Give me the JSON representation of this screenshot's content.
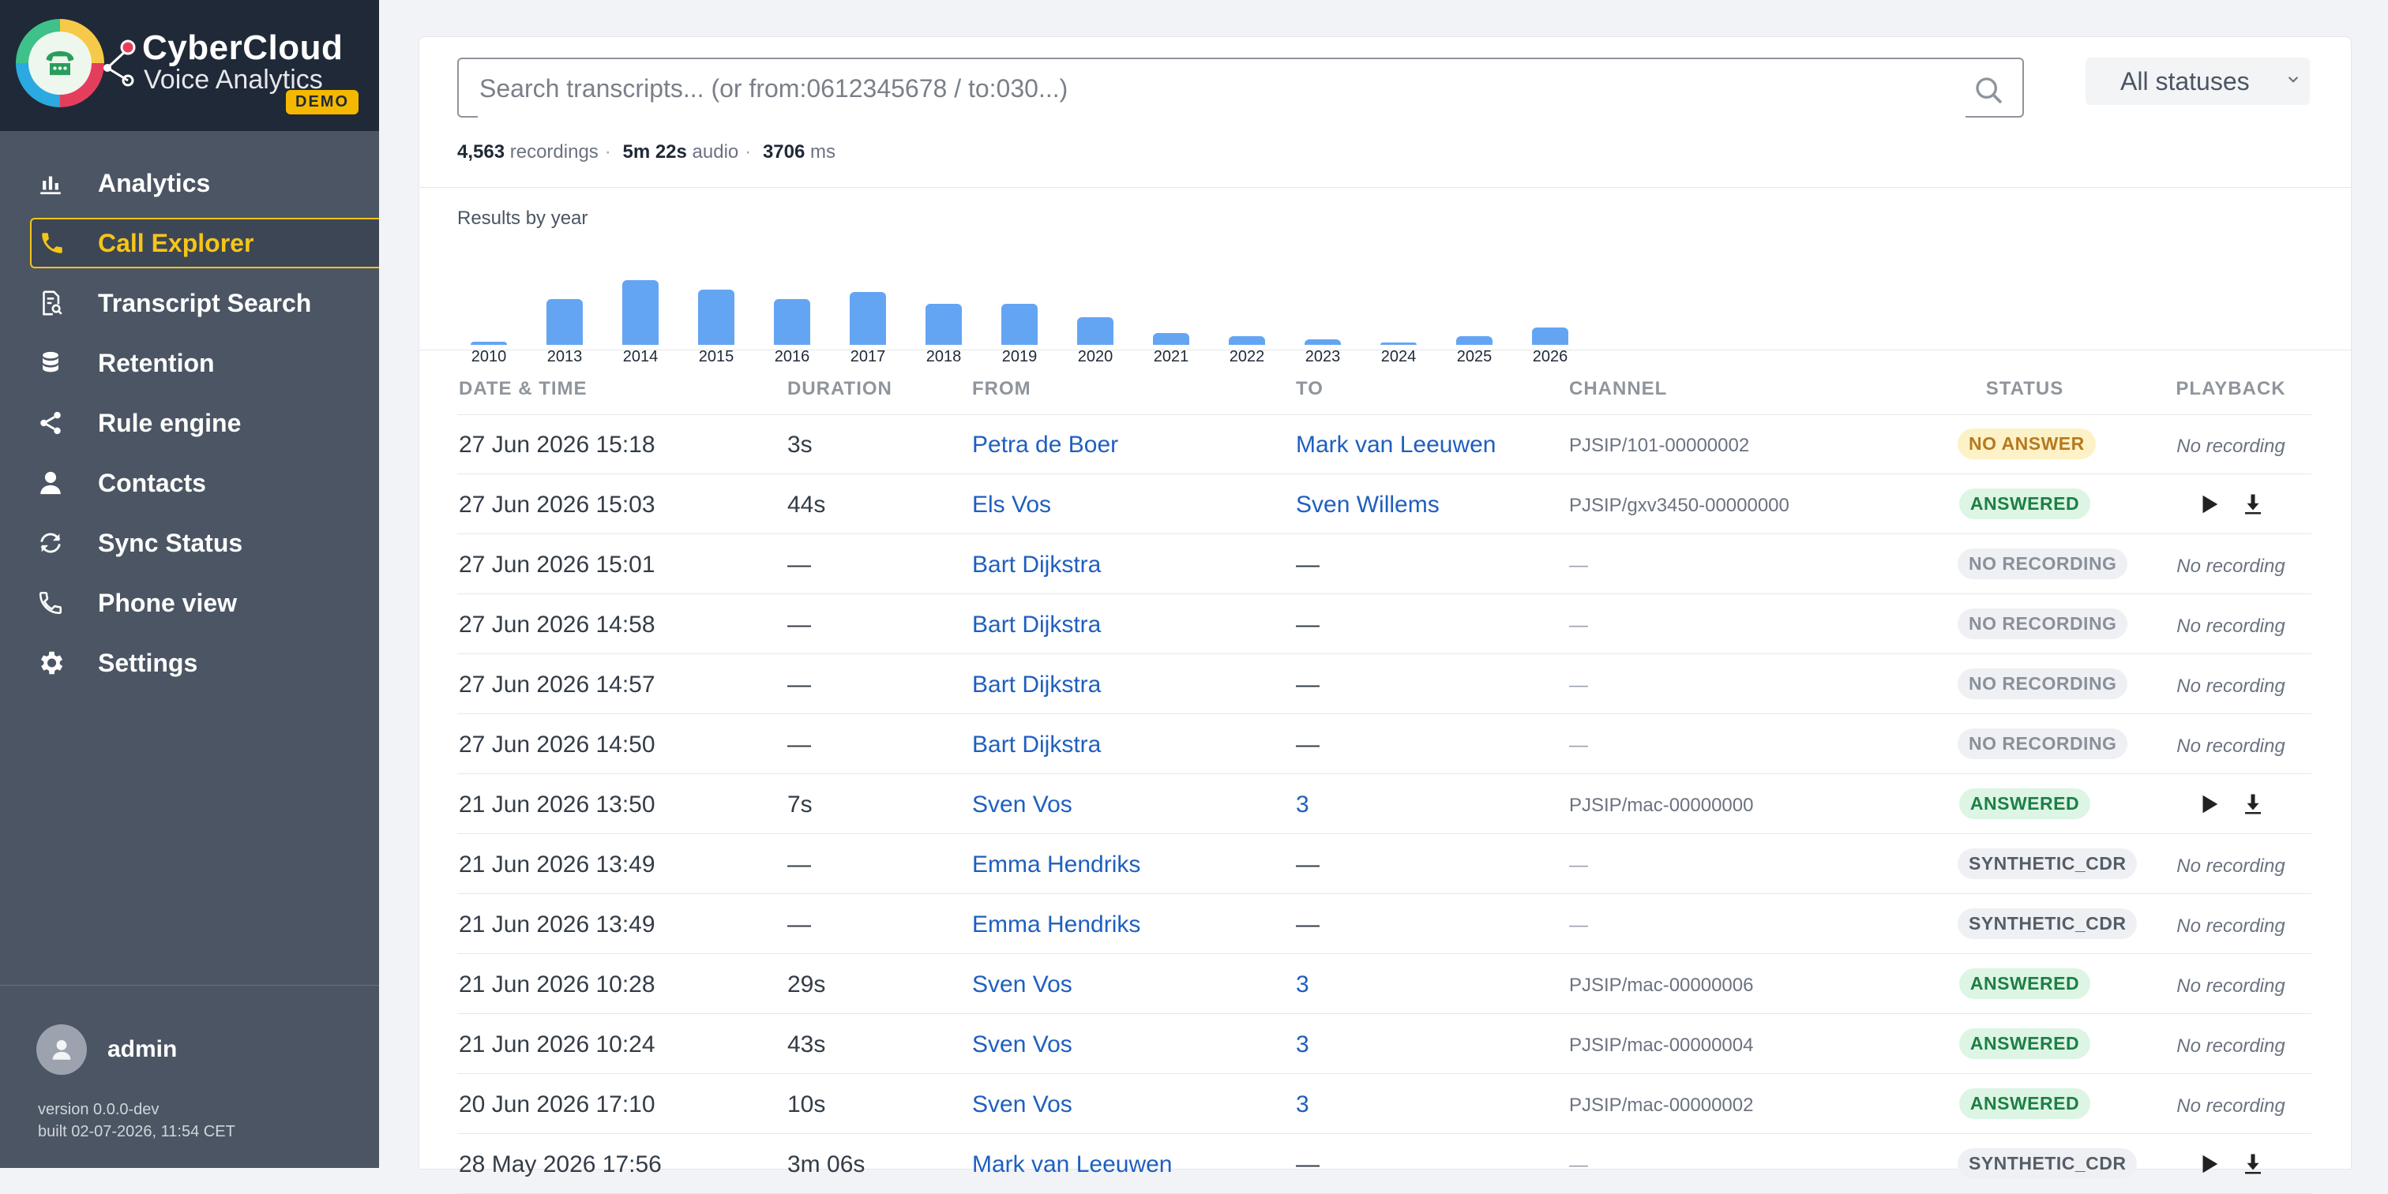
{
  "brand": {
    "title": "CyberCloud",
    "subtitle": "Voice Analytics",
    "badge": "DEMO"
  },
  "sidebar": {
    "items": [
      {
        "label": "Analytics",
        "icon": "bar-chart-icon"
      },
      {
        "label": "Call Explorer",
        "icon": "phone-icon",
        "active": true
      },
      {
        "label": "Transcript Search",
        "icon": "document-search-icon"
      },
      {
        "label": "Retention",
        "icon": "database-icon"
      },
      {
        "label": "Rule engine",
        "icon": "share-icon"
      },
      {
        "label": "Contacts",
        "icon": "person-icon"
      },
      {
        "label": "Sync Status",
        "icon": "sync-icon"
      },
      {
        "label": "Phone view",
        "icon": "phone-icon"
      },
      {
        "label": "Settings",
        "icon": "gear-icon"
      }
    ],
    "user": "admin",
    "version": "version 0.0.0-dev",
    "built": "built 02-07-2026, 11:54 CET"
  },
  "search": {
    "placeholder": "Search transcripts... (or from:0612345678 / to:030...)",
    "status_filter": "All statuses"
  },
  "stats": {
    "recordings_count": "4,563",
    "recordings_label": "recordings",
    "audio_value": "5m 22s",
    "audio_label": "audio",
    "ms_value": "3706",
    "ms_label": "ms"
  },
  "chart_data": {
    "type": "bar",
    "title": "Results by year",
    "categories": [
      "2010",
      "2013",
      "2014",
      "2015",
      "2016",
      "2017",
      "2018",
      "2019",
      "2020",
      "2021",
      "2022",
      "2023",
      "2024",
      "2025",
      "2026"
    ],
    "values": [
      4,
      58,
      82,
      70,
      58,
      67,
      52,
      52,
      35,
      15,
      11,
      7,
      3,
      11,
      22
    ],
    "color": "#64a5f3"
  },
  "table": {
    "headers": {
      "date": "DATE & TIME",
      "duration": "DURATION",
      "from": "FROM",
      "to": "TO",
      "channel": "CHANNEL",
      "status": "STATUS",
      "playback": "PLAYBACK"
    },
    "rows": [
      {
        "date": "27 Jun 2026 15:18",
        "duration": "3s",
        "from": "Petra de Boer",
        "to": "Mark van Leeuwen",
        "channel": "PJSIP/101-00000002",
        "status": "NO ANSWER",
        "playback": "No recording"
      },
      {
        "date": "27 Jun 2026 15:03",
        "duration": "44s",
        "from": "Els Vos",
        "to": "Sven Willems",
        "channel": "PJSIP/gxv3450-00000000",
        "status": "ANSWERED",
        "playback": ""
      },
      {
        "date": "27 Jun 2026 15:01",
        "duration": "—",
        "from": "Bart Dijkstra",
        "to": "—",
        "channel": "—",
        "status": "NO RECORDING",
        "playback": "No recording"
      },
      {
        "date": "27 Jun 2026 14:58",
        "duration": "—",
        "from": "Bart Dijkstra",
        "to": "—",
        "channel": "—",
        "status": "NO RECORDING",
        "playback": "No recording"
      },
      {
        "date": "27 Jun 2026 14:57",
        "duration": "—",
        "from": "Bart Dijkstra",
        "to": "—",
        "channel": "—",
        "status": "NO RECORDING",
        "playback": "No recording"
      },
      {
        "date": "27 Jun 2026 14:50",
        "duration": "—",
        "from": "Bart Dijkstra",
        "to": "—",
        "channel": "—",
        "status": "NO RECORDING",
        "playback": "No recording"
      },
      {
        "date": "21 Jun 2026 13:50",
        "duration": "7s",
        "from": "Sven Vos",
        "to": "3",
        "channel": "PJSIP/mac-00000000",
        "status": "ANSWERED",
        "playback": ""
      },
      {
        "date": "21 Jun 2026 13:49",
        "duration": "—",
        "from": "Emma Hendriks",
        "to": "—",
        "channel": "—",
        "status": "SYNTHETIC_CDR",
        "playback": "No recording"
      },
      {
        "date": "21 Jun 2026 13:49",
        "duration": "—",
        "from": "Emma Hendriks",
        "to": "—",
        "channel": "—",
        "status": "SYNTHETIC_CDR",
        "playback": "No recording"
      },
      {
        "date": "21 Jun 2026 10:28",
        "duration": "29s",
        "from": "Sven Vos",
        "to": "3",
        "channel": "PJSIP/mac-00000006",
        "status": "ANSWERED",
        "playback": "No recording"
      },
      {
        "date": "21 Jun 2026 10:24",
        "duration": "43s",
        "from": "Sven Vos",
        "to": "3",
        "channel": "PJSIP/mac-00000004",
        "status": "ANSWERED",
        "playback": "No recording"
      },
      {
        "date": "20 Jun 2026 17:10",
        "duration": "10s",
        "from": "Sven Vos",
        "to": "3",
        "channel": "PJSIP/mac-00000002",
        "status": "ANSWERED",
        "playback": "No recording"
      },
      {
        "date": "28 May 2026 17:56",
        "duration": "3m 06s",
        "from": "Mark van Leeuwen",
        "to": "—",
        "channel": "—",
        "status": "SYNTHETIC_CDR",
        "playback": ""
      }
    ]
  }
}
